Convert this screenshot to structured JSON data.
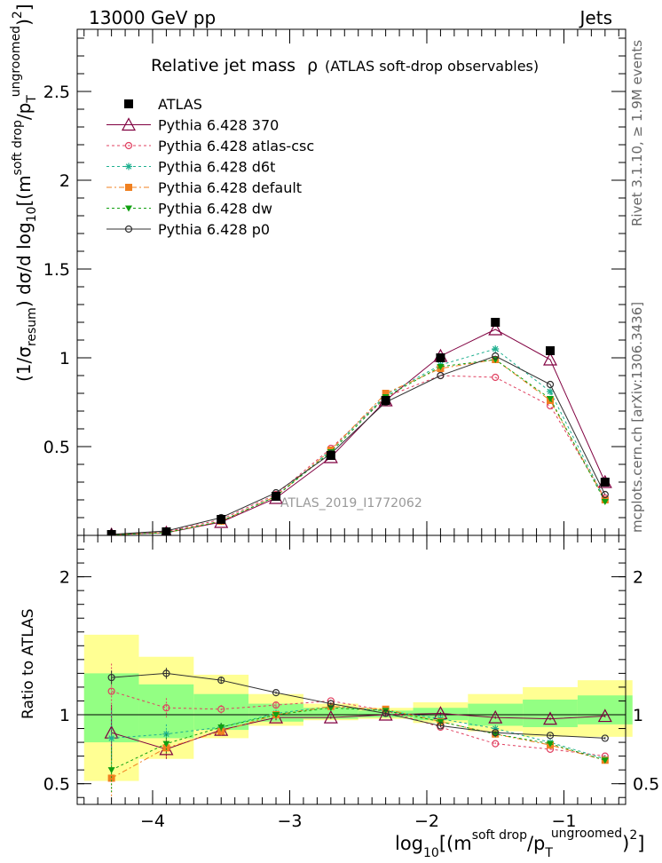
{
  "header": {
    "left": "13000 GeV pp",
    "right": "Jets"
  },
  "side_labels": {
    "rivet": "Rivet 3.1.10, ≥ 1.9M events",
    "mcplots": "mcplots.cern.ch [arXiv:1306.3436]"
  },
  "chart_data": {
    "type": "line",
    "title_main": "Relative jet mass",
    "title_rho": "ρ",
    "title_sub": "(ATLAS soft-drop observables)",
    "analysis_label": "ATLAS_2019_I1772062",
    "ylabel_main": "(1/σresum) dσ/d log10[(m soft drop / pT ungroomed)2]",
    "ylabel_ratio": "Ratio to ATLAS",
    "xlabel": "log10[(m soft drop / pT ungroomed)2]",
    "xlim": [
      -4.55,
      -0.55
    ],
    "ylim_main": [
      0,
      2.85
    ],
    "ylim_ratio": [
      0.35,
      2.3
    ],
    "x_ticks": [
      "−4",
      "−3",
      "−2",
      "−1"
    ],
    "x_tick_values": [
      -4,
      -3,
      -2,
      -1
    ],
    "y_ticks_main": [
      "0.5",
      "1",
      "1.5",
      "2",
      "2.5"
    ],
    "y_tick_values_main": [
      0.5,
      1,
      1.5,
      2,
      2.5
    ],
    "y_ticks_ratio": [
      "0.5",
      "1",
      "2"
    ],
    "y_tick_values_ratio": [
      0.5,
      1,
      2
    ],
    "x": [
      -4.3,
      -3.9,
      -3.5,
      -3.1,
      -2.7,
      -2.3,
      -1.9,
      -1.5,
      -1.1,
      -0.7
    ],
    "bin_edges": [
      -4.5,
      -4.1,
      -3.7,
      -3.3,
      -2.9,
      -2.5,
      -2.1,
      -1.7,
      -1.3,
      -0.9,
      -0.5
    ],
    "data": {
      "name": "ATLAS",
      "values": [
        0.005,
        0.02,
        0.09,
        0.22,
        0.45,
        0.76,
        1.0,
        1.2,
        1.04,
        0.3
      ]
    },
    "band_yellow": [
      [
        0.52,
        1.58
      ],
      [
        0.68,
        1.42
      ],
      [
        0.83,
        1.29
      ],
      [
        0.92,
        1.15
      ],
      [
        0.96,
        1.08
      ],
      [
        0.97,
        1.05
      ],
      [
        0.94,
        1.09
      ],
      [
        0.88,
        1.15
      ],
      [
        0.84,
        1.2
      ],
      [
        0.84,
        1.25
      ]
    ],
    "band_green": [
      [
        0.8,
        1.3
      ],
      [
        0.83,
        1.22
      ],
      [
        0.89,
        1.15
      ],
      [
        0.95,
        1.08
      ],
      [
        0.97,
        1.05
      ],
      [
        0.98,
        1.03
      ],
      [
        0.96,
        1.05
      ],
      [
        0.92,
        1.08
      ],
      [
        0.91,
        1.11
      ],
      [
        0.93,
        1.14
      ]
    ],
    "series": [
      {
        "name": "Pythia 6.428 370",
        "color": "#800040",
        "marker": "triangle",
        "dash": "",
        "values": [
          0.004,
          0.015,
          0.075,
          0.21,
          0.44,
          0.76,
          1.01,
          1.16,
          0.99,
          0.3
        ],
        "ratio": [
          0.87,
          0.75,
          0.89,
          0.98,
          0.98,
          1.0,
          1.01,
          0.98,
          0.97,
          0.99
        ],
        "ratio_err": [
          0.2,
          0.07,
          0.03,
          0.02,
          0.01,
          0.01,
          0.01,
          0.01,
          0.01,
          0.01
        ]
      },
      {
        "name": "Pythia 6.428 atlas-csc",
        "color": "#e04060",
        "marker": "circle-open",
        "dash": "3,3",
        "values": [
          0.006,
          0.02,
          0.09,
          0.23,
          0.49,
          0.78,
          0.9,
          0.89,
          0.73,
          0.21
        ],
        "ratio": [
          1.17,
          1.05,
          1.04,
          1.07,
          1.1,
          1.03,
          0.91,
          0.79,
          0.75,
          0.7
        ],
        "ratio_err": [
          0.2,
          0.07,
          0.03,
          0.02,
          0.01,
          0.01,
          0.01,
          0.01,
          0.01,
          0.01
        ]
      },
      {
        "name": "Pythia 6.428 d6t",
        "color": "#20b090",
        "marker": "star",
        "dash": "3,3",
        "values": [
          0.004,
          0.015,
          0.08,
          0.22,
          0.48,
          0.79,
          0.96,
          1.05,
          0.81,
          0.2
        ],
        "ratio": [
          0.83,
          0.86,
          0.91,
          1.01,
          1.06,
          1.03,
          0.97,
          0.9,
          0.8,
          0.68
        ],
        "ratio_err": [
          0.2,
          0.07,
          0.03,
          0.02,
          0.01,
          0.01,
          0.01,
          0.01,
          0.01,
          0.01
        ]
      },
      {
        "name": "Pythia 6.428 default",
        "color": "#f08020",
        "marker": "square",
        "dash": "6,3,2,3",
        "values": [
          0.003,
          0.015,
          0.08,
          0.22,
          0.48,
          0.8,
          0.94,
          0.99,
          0.76,
          0.2
        ],
        "ratio": [
          0.54,
          0.76,
          0.88,
          1.0,
          1.06,
          1.04,
          0.95,
          0.86,
          0.78,
          0.67
        ],
        "ratio_err": [
          0.14,
          0.07,
          0.03,
          0.02,
          0.01,
          0.01,
          0.01,
          0.01,
          0.01,
          0.01
        ]
      },
      {
        "name": "Pythia 6.428 dw",
        "color": "#10a010",
        "marker": "triangle-down",
        "dash": "3,3",
        "values": [
          0.003,
          0.015,
          0.08,
          0.22,
          0.47,
          0.78,
          0.95,
          0.99,
          0.77,
          0.19
        ],
        "ratio": [
          0.6,
          0.79,
          0.91,
          1.0,
          1.05,
          1.03,
          0.95,
          0.86,
          0.79,
          0.67
        ],
        "ratio_err": [
          0.16,
          0.07,
          0.03,
          0.02,
          0.01,
          0.01,
          0.01,
          0.01,
          0.01,
          0.01
        ]
      },
      {
        "name": "Pythia 6.428 p0",
        "color": "#303030",
        "marker": "circle-open",
        "dash": "",
        "values": [
          0.006,
          0.025,
          0.1,
          0.24,
          0.46,
          0.75,
          0.9,
          1.01,
          0.85,
          0.23
        ],
        "ratio": [
          1.27,
          1.3,
          1.25,
          1.16,
          1.08,
          1.01,
          0.92,
          0.87,
          0.85,
          0.83
        ],
        "ratio_err": [
          0.05,
          0.04,
          0.02,
          0.01,
          0.01,
          0.01,
          0.01,
          0.01,
          0.01,
          0.01
        ]
      }
    ]
  }
}
